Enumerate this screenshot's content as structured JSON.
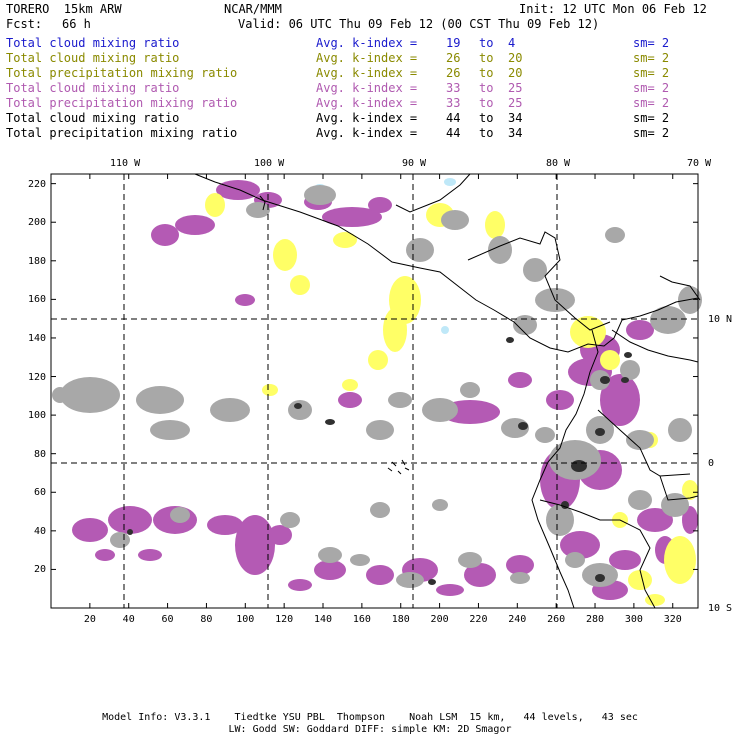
{
  "header": {
    "model": "TORERO  15km ARW",
    "org": "NCAR/MMM",
    "init": "Init: 12 UTC Mon 06 Feb 12",
    "fcst_label": "Fcst:",
    "fcst_value": "66 h",
    "valid": "Valid: 06 UTC Thu 09 Feb 12 (00 CST Thu 09 Feb 12)"
  },
  "legend": [
    {
      "field": "Total cloud mixing ratio",
      "avg": "Avg. k-index =",
      "k1": "19",
      "to": "to",
      "k2": "4",
      "sm": "sm= 2",
      "color": "#1a1acc"
    },
    {
      "field": "Total cloud mixing ratio",
      "avg": "Avg. k-index =",
      "k1": "26",
      "to": "to",
      "k2": "20",
      "sm": "sm= 2",
      "color": "#8a8a00"
    },
    {
      "field": "Total precipitation mixing ratio",
      "avg": "Avg. k-index =",
      "k1": "26",
      "to": "to",
      "k2": "20",
      "sm": "sm= 2",
      "color": "#8a8a00"
    },
    {
      "field": "Total cloud mixing ratio",
      "avg": "Avg. k-index =",
      "k1": "33",
      "to": "to",
      "k2": "25",
      "sm": "sm= 2",
      "color": "#b05ab0"
    },
    {
      "field": "Total precipitation mixing ratio",
      "avg": "Avg. k-index =",
      "k1": "33",
      "to": "to",
      "k2": "25",
      "sm": "sm= 2",
      "color": "#b05ab0"
    },
    {
      "field": "Total cloud mixing ratio",
      "avg": "Avg. k-index =",
      "k1": "44",
      "to": "to",
      "k2": "34",
      "sm": "sm= 2",
      "color": "#000000"
    },
    {
      "field": "Total precipitation mixing ratio",
      "avg": "Avg. k-index =",
      "k1": "44",
      "to": "to",
      "k2": "34",
      "sm": "sm= 2",
      "color": "#000000"
    }
  ],
  "axes": {
    "x_ticks": [
      "20",
      "40",
      "60",
      "80",
      "100",
      "120",
      "140",
      "160",
      "180",
      "200",
      "220",
      "240",
      "260",
      "280",
      "300",
      "320"
    ],
    "y_ticks": [
      "20",
      "40",
      "60",
      "80",
      "100",
      "120",
      "140",
      "160",
      "180",
      "200",
      "220"
    ],
    "lon_labels": [
      "110 W",
      "100 W",
      "90 W",
      "80 W",
      "70 W"
    ],
    "lat_labels": [
      "10 N",
      "0",
      "10 S"
    ],
    "x_range": [
      0,
      333
    ],
    "y_range": [
      0,
      225
    ]
  },
  "fill_colors": {
    "light_blue": "#bfe8f8",
    "yellow": "#ffff66",
    "purple": "#b45ab4",
    "gray": "#a8a8a8",
    "dark": "#303030"
  },
  "footer": {
    "line1": "Model Info: V3.3.1    Tiedtke YSU PBL  Thompson    Noah LSM  15 km,   44 levels,   43 sec",
    "line2": "LW: Godd SW: Goddard DIFF: simple KM: 2D Smagor"
  }
}
